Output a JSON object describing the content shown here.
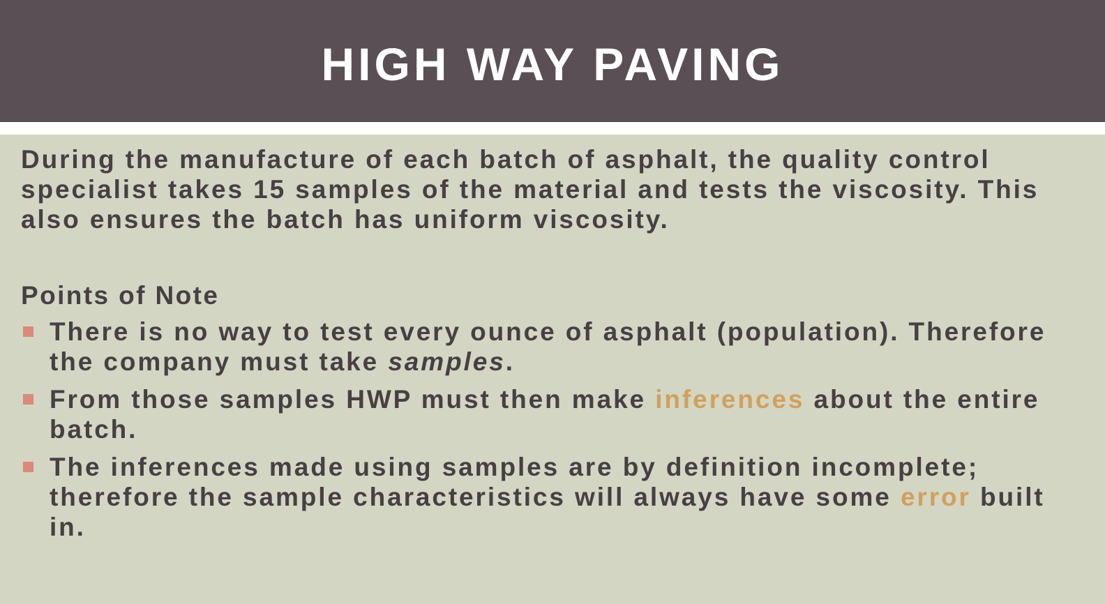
{
  "slide": {
    "title": "HIGH WAY PAVING",
    "intro": "During the manufacture of each batch of asphalt, the quality control specialist takes 15 samples of the material and tests the viscosity. This also ensures the batch has uniform viscosity.",
    "points_heading": "Points of Note",
    "bullets": [
      {
        "part1": "There is no way to test every ounce of asphalt (population). Therefore the company must take ",
        "emphasis": "samples",
        "part2": "."
      },
      {
        "part1": "From those samples HWP must then make ",
        "highlight": "inferences",
        "part2": " about the entire batch."
      },
      {
        "part1": "The inferences made using samples are by definition incomplete; therefore the sample characteristics will always have some ",
        "highlight": "error",
        "part2": " built in."
      }
    ]
  },
  "colors": {
    "title_bar": "#594f54",
    "background": "#d3d6c3",
    "body_text": "#474043",
    "highlight": "#d1a05e",
    "bullet_marker": "#d98a78"
  }
}
